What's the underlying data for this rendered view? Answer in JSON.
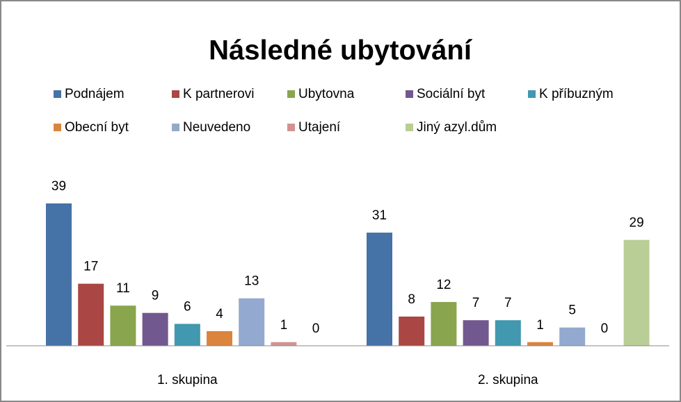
{
  "chart_data": {
    "type": "bar",
    "title": "Následné ubytování",
    "categories": [
      "1. skupina",
      "2. skupina"
    ],
    "series": [
      {
        "name": "Podnájem",
        "color": "#4572a7",
        "values": [
          39,
          31
        ]
      },
      {
        "name": "K partnerovi",
        "color": "#aa4643",
        "values": [
          17,
          8
        ]
      },
      {
        "name": "Ubytovna",
        "color": "#89a54e",
        "values": [
          11,
          12
        ]
      },
      {
        "name": "Sociální byt",
        "color": "#71588f",
        "values": [
          9,
          7
        ]
      },
      {
        "name": "K příbuzným",
        "color": "#4198af",
        "values": [
          6,
          7
        ]
      },
      {
        "name": "Obecní byt",
        "color": "#db843d",
        "values": [
          4,
          1
        ]
      },
      {
        "name": "Neuvedeno",
        "color": "#93a9cf",
        "values": [
          13,
          5
        ]
      },
      {
        "name": "Utajení",
        "color": "#d19392",
        "values": [
          1,
          0
        ]
      },
      {
        "name": "Jiný azyl.dům",
        "color": "#b9cd96",
        "values": [
          0,
          29
        ]
      }
    ]
  }
}
